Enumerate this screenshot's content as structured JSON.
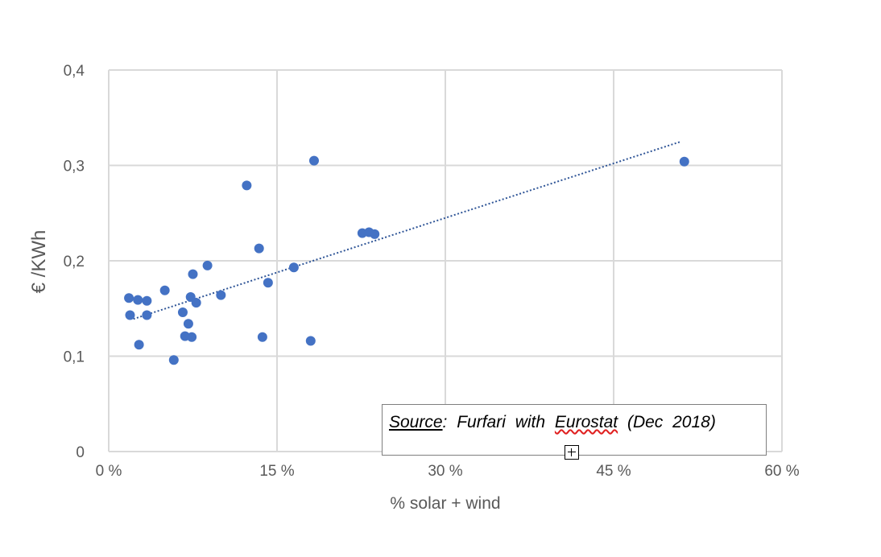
{
  "chart_data": {
    "type": "scatter",
    "xlabel": "% solar + wind",
    "ylabel": "€ /KWh",
    "xlim": [
      0,
      60
    ],
    "ylim": [
      0,
      0.4
    ],
    "x_ticks": [
      0,
      15,
      30,
      45,
      60
    ],
    "x_tick_labels": [
      "0 %",
      "15 %",
      "30 %",
      "45 %",
      "60 %"
    ],
    "y_ticks": [
      0,
      0.1,
      0.2,
      0.3,
      0.4
    ],
    "y_tick_labels": [
      "0",
      "0,1",
      "0,2",
      "0,3",
      "0,4"
    ],
    "grid": true,
    "marker_color": "#4472c4",
    "trendline": {
      "type": "linear",
      "style": "dotted",
      "color": "#2f5597",
      "x": [
        2.2,
        51
      ],
      "y": [
        0.139,
        0.325
      ]
    },
    "points": [
      {
        "x": 1.8,
        "y": 0.161
      },
      {
        "x": 1.9,
        "y": 0.143
      },
      {
        "x": 2.6,
        "y": 0.159
      },
      {
        "x": 2.7,
        "y": 0.112
      },
      {
        "x": 3.4,
        "y": 0.158
      },
      {
        "x": 3.4,
        "y": 0.143
      },
      {
        "x": 5.0,
        "y": 0.169
      },
      {
        "x": 5.8,
        "y": 0.096
      },
      {
        "x": 6.6,
        "y": 0.146
      },
      {
        "x": 6.8,
        "y": 0.121
      },
      {
        "x": 7.1,
        "y": 0.134
      },
      {
        "x": 7.3,
        "y": 0.162
      },
      {
        "x": 7.4,
        "y": 0.12
      },
      {
        "x": 7.5,
        "y": 0.186
      },
      {
        "x": 7.8,
        "y": 0.156
      },
      {
        "x": 8.8,
        "y": 0.195
      },
      {
        "x": 10.0,
        "y": 0.164
      },
      {
        "x": 12.3,
        "y": 0.279
      },
      {
        "x": 13.4,
        "y": 0.213
      },
      {
        "x": 13.7,
        "y": 0.12
      },
      {
        "x": 14.2,
        "y": 0.177
      },
      {
        "x": 16.5,
        "y": 0.193
      },
      {
        "x": 18.0,
        "y": 0.116
      },
      {
        "x": 18.3,
        "y": 0.305
      },
      {
        "x": 22.6,
        "y": 0.229
      },
      {
        "x": 23.2,
        "y": 0.23
      },
      {
        "x": 23.7,
        "y": 0.228
      },
      {
        "x": 51.3,
        "y": 0.304
      }
    ]
  },
  "annotation": {
    "source_label": "Source",
    "source_rest_1": ": Furfari with ",
    "source_eurostat": "Eurostat",
    "source_rest_2": " (Dec 2018)"
  },
  "icons": {
    "move_handle": "move-plus-icon"
  }
}
